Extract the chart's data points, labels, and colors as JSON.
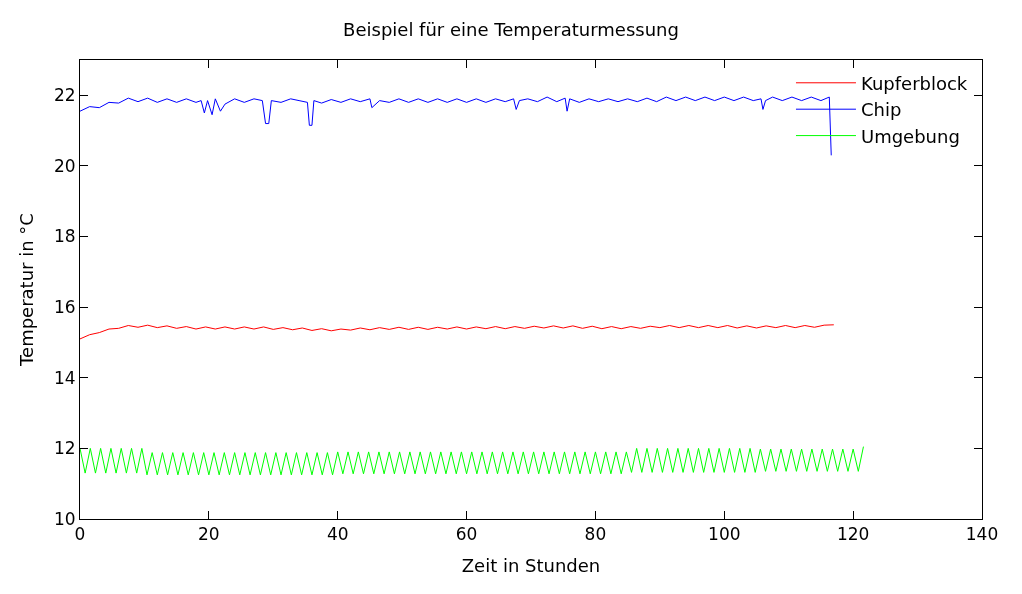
{
  "chart_data": {
    "type": "line",
    "title": "Beispiel für eine Temperaturmessung",
    "xlabel": "Zeit in Stunden",
    "ylabel": "Temperatur in °C",
    "xlim": [
      0,
      140
    ],
    "xticks": [
      0,
      20,
      40,
      60,
      80,
      100,
      120,
      140
    ],
    "ylim": [
      10,
      23
    ],
    "yticks": [
      10,
      12,
      14,
      16,
      18,
      20,
      22
    ],
    "legend": "top right",
    "marker": "none",
    "line_style": "solid",
    "series": [
      {
        "name": "Kupferblock",
        "color": "#ff0000",
        "x": [
          0,
          1.5,
          3,
          4.5,
          6,
          7.5,
          9,
          10.5,
          12,
          13.5,
          15,
          16.5,
          18,
          19.5,
          21,
          22.5,
          24,
          25.5,
          27,
          28.5,
          30,
          31.5,
          33,
          34.5,
          36,
          37.5,
          39,
          40.5,
          42,
          43.5,
          45,
          46.5,
          48,
          49.5,
          51,
          52.5,
          54,
          55.5,
          57,
          58.5,
          60,
          61.5,
          63,
          64.5,
          66,
          67.5,
          69,
          70.5,
          72,
          73.5,
          75,
          76.5,
          78,
          79.5,
          81,
          82.5,
          84,
          85.5,
          87,
          88.5,
          90,
          91.5,
          93,
          94.5,
          96,
          97.5,
          99,
          100.5,
          102,
          103.5,
          105,
          106.5,
          108,
          109.5,
          111,
          112.5,
          114,
          115.5,
          117
        ],
        "values": [
          15.1,
          15.22,
          15.28,
          15.38,
          15.4,
          15.48,
          15.43,
          15.49,
          15.42,
          15.47,
          15.4,
          15.45,
          15.38,
          15.44,
          15.38,
          15.44,
          15.38,
          15.44,
          15.38,
          15.44,
          15.37,
          15.42,
          15.36,
          15.41,
          15.34,
          15.39,
          15.33,
          15.38,
          15.35,
          15.41,
          15.36,
          15.42,
          15.37,
          15.43,
          15.37,
          15.43,
          15.37,
          15.43,
          15.38,
          15.44,
          15.38,
          15.44,
          15.39,
          15.45,
          15.39,
          15.45,
          15.4,
          15.46,
          15.41,
          15.47,
          15.41,
          15.47,
          15.4,
          15.46,
          15.39,
          15.45,
          15.39,
          15.45,
          15.4,
          15.46,
          15.42,
          15.48,
          15.42,
          15.48,
          15.42,
          15.48,
          15.42,
          15.48,
          15.41,
          15.47,
          15.41,
          15.47,
          15.42,
          15.48,
          15.42,
          15.48,
          15.43,
          15.49,
          15.5
        ]
      },
      {
        "name": "Chip",
        "color": "#0000ff",
        "x": [
          0,
          1.5,
          3,
          4.5,
          6,
          7.5,
          9,
          10.5,
          12,
          13.5,
          15,
          16.5,
          18,
          18.8,
          19.3,
          19.8,
          20.5,
          21,
          21.8,
          22.5,
          24,
          25.5,
          27,
          28.3,
          28.8,
          29.3,
          29.7,
          31.2,
          32.7,
          34,
          35.3,
          35.6,
          36,
          36.3,
          37.5,
          39,
          40.5,
          42,
          43.5,
          45,
          45.3,
          46.5,
          48,
          49.5,
          51,
          52.5,
          54,
          55.5,
          57,
          58.5,
          60,
          61.5,
          63,
          64.5,
          66,
          67.3,
          67.7,
          68.2,
          69.5,
          71,
          72.5,
          74,
          75.3,
          75.6,
          76,
          77.5,
          79,
          80.5,
          82,
          83.5,
          85,
          86.5,
          88,
          89.5,
          91,
          92.5,
          94,
          95.5,
          97,
          98.5,
          100,
          101.5,
          103,
          104.5,
          105.7,
          106,
          106.4,
          107.5,
          109,
          110.5,
          112,
          113.5,
          115,
          116.3,
          116.6
        ],
        "values": [
          21.55,
          21.68,
          21.65,
          21.8,
          21.78,
          21.92,
          21.82,
          21.92,
          21.8,
          21.9,
          21.8,
          21.9,
          21.8,
          21.85,
          21.5,
          21.85,
          21.45,
          21.9,
          21.55,
          21.75,
          21.9,
          21.8,
          21.9,
          21.85,
          21.2,
          21.2,
          21.85,
          21.8,
          21.9,
          21.85,
          21.8,
          21.15,
          21.15,
          21.85,
          21.78,
          21.88,
          21.8,
          21.9,
          21.82,
          21.9,
          21.65,
          21.85,
          21.8,
          21.9,
          21.8,
          21.9,
          21.8,
          21.9,
          21.8,
          21.9,
          21.8,
          21.9,
          21.8,
          21.9,
          21.82,
          21.9,
          21.6,
          21.85,
          21.9,
          21.82,
          21.95,
          21.82,
          21.92,
          21.55,
          21.9,
          21.8,
          21.9,
          21.82,
          21.9,
          21.82,
          21.9,
          21.82,
          21.92,
          21.82,
          21.95,
          21.85,
          21.95,
          21.85,
          21.95,
          21.85,
          21.95,
          21.85,
          21.95,
          21.85,
          21.9,
          21.6,
          21.85,
          21.95,
          21.85,
          21.95,
          21.85,
          21.95,
          21.85,
          21.95,
          20.3
        ]
      },
      {
        "name": "Umgebung",
        "color": "#00ff00",
        "x": [
          0,
          0.8,
          1.6,
          2.4,
          3.2,
          4,
          4.8,
          5.6,
          6.4,
          7.2,
          8,
          8.8,
          9.6,
          10.4,
          11.2,
          12,
          12.8,
          13.6,
          14.4,
          15.2,
          16,
          16.8,
          17.6,
          18.4,
          19.2,
          20,
          20.8,
          21.6,
          22.4,
          23.2,
          24,
          24.8,
          25.6,
          26.4,
          27.2,
          28,
          28.8,
          29.6,
          30.4,
          31.2,
          32,
          32.8,
          33.6,
          34.4,
          35.2,
          36,
          36.8,
          37.6,
          38.4,
          39.2,
          40,
          40.8,
          41.6,
          42.4,
          43.2,
          44,
          44.8,
          45.6,
          46.4,
          47.2,
          48,
          48.8,
          49.6,
          50.4,
          51.2,
          52,
          52.8,
          53.6,
          54.4,
          55.2,
          56,
          56.8,
          57.6,
          58.4,
          59.2,
          60,
          60.8,
          61.6,
          62.4,
          63.2,
          64,
          64.8,
          65.6,
          66.4,
          67.2,
          68,
          68.8,
          69.6,
          70.4,
          71.2,
          72,
          72.8,
          73.6,
          74.4,
          75.2,
          76,
          76.8,
          77.6,
          78.4,
          79.2,
          80,
          80.8,
          81.6,
          82.4,
          83.2,
          84,
          84.8,
          85.6,
          86.4,
          87.2,
          88,
          88.8,
          89.6,
          90.4,
          91.2,
          92,
          92.8,
          93.6,
          94.4,
          95.2,
          96,
          96.8,
          97.6,
          98.4,
          99.2,
          100,
          100.8,
          101.6,
          102.4,
          103.2,
          104,
          104.8,
          105.6,
          106.4,
          107.2,
          108,
          108.8,
          109.6,
          110.4,
          111.2,
          112,
          112.8,
          113.6,
          114.4,
          115.2,
          116,
          116.8,
          117.6,
          118.4,
          119.2,
          120,
          120.8,
          121.6
        ],
        "values": [
          12.0,
          11.3,
          12.0,
          11.3,
          12.0,
          11.3,
          12.0,
          11.3,
          12.0,
          11.3,
          12.0,
          11.3,
          12.0,
          11.25,
          11.88,
          11.25,
          11.88,
          11.25,
          11.88,
          11.25,
          11.88,
          11.25,
          11.88,
          11.25,
          11.88,
          11.25,
          11.88,
          11.25,
          11.88,
          11.25,
          11.88,
          11.25,
          11.88,
          11.25,
          11.88,
          11.25,
          11.88,
          11.25,
          11.88,
          11.25,
          11.88,
          11.25,
          11.88,
          11.25,
          11.88,
          11.25,
          11.88,
          11.25,
          11.88,
          11.25,
          11.9,
          11.28,
          11.9,
          11.28,
          11.9,
          11.28,
          11.9,
          11.28,
          11.9,
          11.28,
          11.9,
          11.28,
          11.9,
          11.28,
          11.9,
          11.28,
          11.9,
          11.28,
          11.9,
          11.28,
          11.9,
          11.28,
          11.9,
          11.28,
          11.9,
          11.28,
          11.9,
          11.28,
          11.9,
          11.28,
          11.9,
          11.28,
          11.9,
          11.28,
          11.9,
          11.28,
          11.9,
          11.28,
          11.9,
          11.28,
          11.9,
          11.28,
          11.9,
          11.28,
          11.9,
          11.28,
          11.9,
          11.28,
          11.9,
          11.28,
          11.9,
          11.28,
          11.9,
          11.28,
          11.9,
          11.28,
          11.9,
          11.32,
          12.0,
          11.32,
          12.0,
          11.32,
          12.0,
          11.32,
          12.0,
          11.32,
          12.0,
          11.32,
          12.0,
          11.32,
          12.0,
          11.32,
          12.0,
          11.32,
          12.0,
          11.32,
          12.0,
          11.32,
          12.0,
          11.32,
          12.0,
          11.32,
          11.98,
          11.35,
          11.98,
          11.35,
          11.98,
          11.35,
          11.98,
          11.35,
          11.98,
          11.35,
          11.98,
          11.35,
          11.98,
          11.35,
          11.98,
          11.35,
          11.98,
          11.35,
          11.98,
          11.35,
          12.05
        ]
      }
    ]
  }
}
